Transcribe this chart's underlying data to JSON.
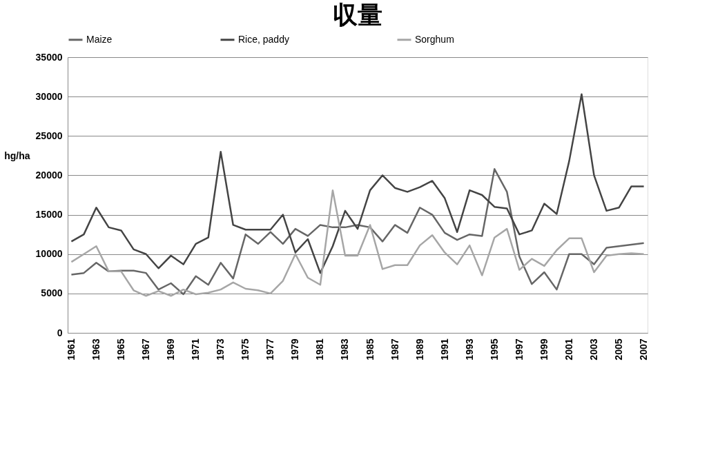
{
  "chart_data": {
    "type": "line",
    "title": "収量",
    "ylabel": "hg/ha",
    "categories": [
      "1961",
      null,
      "1963",
      null,
      "1965",
      null,
      "1967",
      null,
      "1969",
      null,
      "1971",
      null,
      "1973",
      null,
      "1975",
      null,
      "1977",
      null,
      "1979",
      null,
      "1981",
      null,
      "1983",
      null,
      "1985",
      null,
      "1987",
      null,
      "1989",
      null,
      "1991",
      null,
      "1993",
      null,
      "1995",
      null,
      "1997",
      null,
      "1999",
      null,
      "2001",
      null,
      "2003",
      null,
      "2005",
      null,
      "2007"
    ],
    "series": [
      {
        "name": "Maize",
        "color": "#666666",
        "values": [
          7400,
          7600,
          8900,
          7800,
          7900,
          7900,
          7600,
          5500,
          6300,
          4900,
          7200,
          6100,
          8900,
          6900,
          12500,
          11300,
          12800,
          11300,
          13200,
          12300,
          13700,
          13400,
          13400,
          13700,
          13400,
          11600,
          13700,
          12700,
          15900,
          15000,
          12700,
          11800,
          12500,
          12300,
          20800,
          17900,
          9700,
          6200,
          7700,
          5500,
          10000,
          10000,
          8700,
          10800,
          11000,
          11200,
          11400
        ]
      },
      {
        "name": "Rice, paddy",
        "color": "#444444",
        "values": [
          11600,
          12500,
          15900,
          13400,
          13000,
          10600,
          10000,
          8200,
          9800,
          8700,
          11300,
          12100,
          23000,
          13700,
          13100,
          13100,
          13100,
          15000,
          10200,
          11900,
          7600,
          11000,
          15500,
          13200,
          18100,
          20000,
          18400,
          17900,
          18500,
          19300,
          17100,
          12800,
          18100,
          17500,
          16000,
          15800,
          12500,
          13000,
          16400,
          15100,
          21800,
          30300,
          20000,
          15500,
          15900,
          18600,
          18600
        ]
      },
      {
        "name": "Sorghum",
        "color": "#a6a6a6",
        "values": [
          9000,
          10000,
          11000,
          7800,
          7800,
          5400,
          4700,
          5300,
          4700,
          5500,
          4900,
          5100,
          5500,
          6400,
          5600,
          5400,
          5000,
          6600,
          10000,
          7000,
          6100,
          18100,
          9800,
          9800,
          13700,
          8100,
          8600,
          8600,
          11100,
          12400,
          10200,
          8700,
          11100,
          7300,
          12100,
          13200,
          8000,
          9400,
          8500,
          10500,
          12000,
          12000,
          7700,
          9800,
          10000,
          10100,
          10000
        ]
      }
    ],
    "ylim": [
      0,
      35000
    ],
    "yticks": [
      0,
      5000,
      10000,
      15000,
      20000,
      25000,
      30000,
      35000
    ],
    "grid": "y",
    "legend": "top",
    "marker": "none",
    "line_style": "solid"
  }
}
